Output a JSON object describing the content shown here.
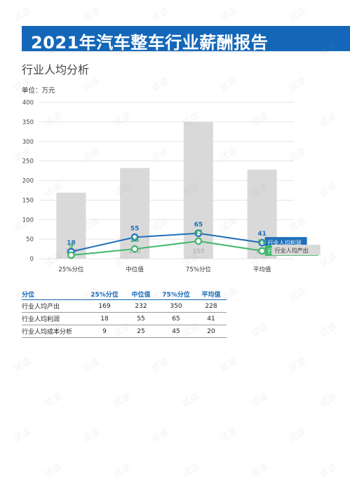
{
  "header": {
    "title": "2021年汽车整车行业薪酬报告"
  },
  "subtitle": "行业人均分析",
  "unit_label": "单位：万元",
  "watermark": "试读",
  "colors": {
    "header": "#1467b8",
    "profit": "#1f6fb9",
    "cost": "#3db76b",
    "bar": "#d9d9d9",
    "bar_label": "#a6a6a6",
    "table_header": "#1467b8"
  },
  "chart_data": {
    "type": "bar",
    "categories": [
      "25%分位",
      "中位值",
      "75%分位",
      "平均值"
    ],
    "ylim": [
      0,
      400
    ],
    "yticks": [
      0,
      50,
      100,
      150,
      200,
      250,
      300,
      350,
      400
    ],
    "series": [
      {
        "name": "行业人均产出",
        "type": "bar",
        "values": [
          169,
          232,
          350,
          228
        ]
      },
      {
        "name": "行业人均利润",
        "type": "line",
        "values": [
          18,
          55,
          65,
          41
        ]
      },
      {
        "name": "行业人均成本分析",
        "type": "line",
        "values": [
          9,
          25,
          45,
          20
        ]
      }
    ]
  },
  "table": {
    "headers": [
      "分位",
      "25%分位",
      "中位值",
      "75%分位",
      "平均值"
    ],
    "rows": [
      [
        "行业人均产出",
        "169",
        "232",
        "350",
        "228"
      ],
      [
        "行业人均利润",
        "18",
        "55",
        "65",
        "41"
      ],
      [
        "行业人均成本分析",
        "9",
        "25",
        "45",
        "20"
      ]
    ]
  }
}
